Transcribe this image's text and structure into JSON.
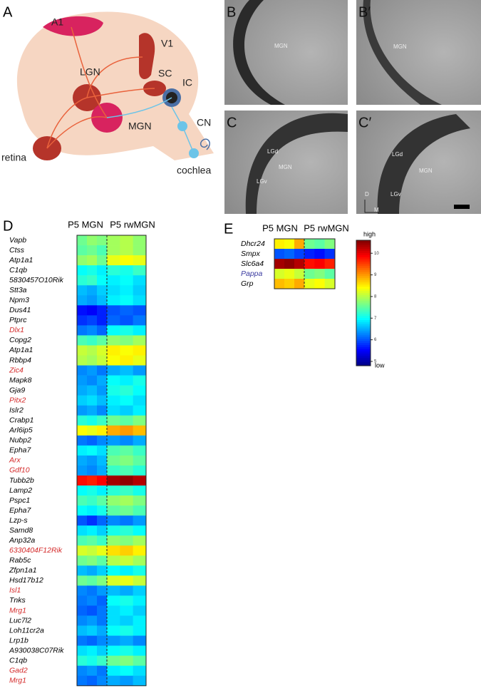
{
  "panel_a": {
    "letter": "A",
    "labels": [
      "A1",
      "V1",
      "SC",
      "IC",
      "LGN",
      "MGN",
      "CN",
      "retina",
      "cochlea"
    ]
  },
  "photos": [
    {
      "letter": "B",
      "labels": [
        "MGN"
      ]
    },
    {
      "letter": "B′",
      "labels": [
        "MGN"
      ]
    },
    {
      "letter": "C",
      "labels": [
        "LGd",
        "MGN",
        "LGv"
      ]
    },
    {
      "letter": "C′",
      "labels": [
        "LGd",
        "MGN",
        "LGv",
        "D",
        "M"
      ]
    }
  ],
  "panel_d": {
    "letter": "D",
    "columns": [
      "P5 MGN",
      "P5 rwMGN"
    ],
    "rows": [
      {
        "gene": "Vapb",
        "values": [
          7.6,
          7.8,
          7.7,
          7.9,
          8.0,
          7.8
        ]
      },
      {
        "gene": "Ctss",
        "values": [
          7.5,
          7.6,
          7.4,
          7.9,
          8.0,
          7.8
        ]
      },
      {
        "gene": "Atp1a1",
        "values": [
          7.8,
          7.9,
          7.6,
          8.3,
          8.4,
          8.3
        ]
      },
      {
        "gene": "C1qb",
        "values": [
          7.0,
          7.1,
          6.9,
          7.2,
          7.1,
          7.3
        ]
      },
      {
        "gene": "5830457O10Rik",
        "values": [
          7.2,
          7.3,
          7.0,
          6.9,
          7.0,
          6.8
        ]
      },
      {
        "gene": "Stt3a",
        "values": [
          6.6,
          6.5,
          6.7,
          6.8,
          6.9,
          6.7
        ]
      },
      {
        "gene": "Npm3",
        "values": [
          6.5,
          6.4,
          6.6,
          6.9,
          7.0,
          6.8
        ]
      },
      {
        "gene": "Dus41",
        "values": [
          5.6,
          5.5,
          5.7,
          6.0,
          6.1,
          6.0
        ]
      },
      {
        "gene": "Ptprc",
        "values": [
          5.8,
          5.9,
          5.7,
          6.1,
          6.0,
          6.2
        ]
      },
      {
        "gene": "Dlx1",
        "label_color": "#d42a2a",
        "values": [
          6.2,
          6.3,
          6.1,
          7.0,
          7.1,
          6.9
        ]
      },
      {
        "gene": "Copg2",
        "values": [
          7.4,
          7.3,
          7.5,
          7.8,
          7.7,
          7.9
        ]
      },
      {
        "gene": "Atp1a1",
        "values": [
          8.1,
          8.0,
          8.2,
          8.5,
          8.4,
          8.5
        ]
      },
      {
        "gene": "Rbbp4",
        "values": [
          8.0,
          7.9,
          8.1,
          8.4,
          8.5,
          8.3
        ]
      },
      {
        "gene": "Zic4",
        "label_color": "#d42a2a",
        "values": [
          6.3,
          6.4,
          6.2,
          6.5,
          6.6,
          6.4
        ]
      },
      {
        "gene": "Mapk8",
        "values": [
          6.4,
          6.3,
          6.5,
          7.0,
          6.9,
          7.1
        ]
      },
      {
        "gene": "Gja9",
        "values": [
          6.5,
          6.6,
          6.4,
          7.1,
          7.2,
          7.0
        ]
      },
      {
        "gene": "Pitx2",
        "label_color": "#d42a2a",
        "values": [
          6.7,
          6.8,
          6.6,
          6.9,
          7.0,
          6.8
        ]
      },
      {
        "gene": "Islr2",
        "values": [
          6.4,
          6.5,
          6.3,
          6.8,
          6.7,
          6.9
        ]
      },
      {
        "gene": "Crabp1",
        "values": [
          7.2,
          7.1,
          7.3,
          7.6,
          7.5,
          7.7
        ]
      },
      {
        "gene": "Arl6ip5",
        "values": [
          8.4,
          8.3,
          8.5,
          8.9,
          9.0,
          8.8
        ]
      },
      {
        "gene": "Nubp2",
        "values": [
          6.2,
          6.1,
          6.3,
          6.4,
          6.3,
          6.5
        ]
      },
      {
        "gene": "Epha7",
        "values": [
          6.9,
          7.0,
          6.8,
          7.4,
          7.5,
          7.3
        ]
      },
      {
        "gene": "Arx",
        "label_color": "#d42a2a",
        "values": [
          6.5,
          6.4,
          6.6,
          7.6,
          7.7,
          7.5
        ]
      },
      {
        "gene": "Gdf10",
        "label_color": "#d42a2a",
        "values": [
          6.4,
          6.3,
          6.5,
          7.3,
          7.4,
          7.2
        ]
      },
      {
        "gene": "Tubb2b",
        "values": [
          9.8,
          9.7,
          9.9,
          10.4,
          10.5,
          10.3
        ]
      },
      {
        "gene": "Lamp2",
        "values": [
          7.0,
          7.1,
          6.9,
          7.2,
          7.3,
          7.1
        ]
      },
      {
        "gene": "Pspc1",
        "values": [
          7.4,
          7.3,
          7.5,
          7.8,
          7.9,
          7.7
        ]
      },
      {
        "gene": "Epha7",
        "values": [
          7.0,
          6.9,
          7.1,
          7.5,
          7.6,
          7.4
        ]
      },
      {
        "gene": "Lzp-s",
        "values": [
          6.0,
          5.8,
          6.1,
          6.3,
          6.2,
          6.4
        ]
      },
      {
        "gene": "Samd8",
        "values": [
          6.8,
          6.9,
          6.7,
          7.1,
          7.2,
          7.0
        ]
      },
      {
        "gene": "Anp32a",
        "values": [
          7.4,
          7.5,
          7.3,
          7.8,
          7.7,
          7.9
        ]
      },
      {
        "gene": "6330404F12Rik",
        "label_color": "#d42a2a",
        "values": [
          8.2,
          8.1,
          8.3,
          8.6,
          8.7,
          8.5
        ]
      },
      {
        "gene": "Rab5c",
        "values": [
          7.6,
          7.7,
          7.5,
          8.0,
          8.1,
          7.9
        ]
      },
      {
        "gene": "Zfpn1a1",
        "values": [
          6.6,
          6.5,
          6.7,
          7.0,
          6.9,
          7.1
        ]
      },
      {
        "gene": "Hsd17b12",
        "values": [
          7.6,
          7.5,
          7.7,
          8.2,
          8.3,
          8.1
        ]
      },
      {
        "gene": "Isl1",
        "label_color": "#d42a2a",
        "values": [
          6.3,
          6.2,
          6.4,
          6.6,
          6.5,
          6.7
        ]
      },
      {
        "gene": "Tnks",
        "values": [
          6.2,
          6.3,
          6.1,
          7.0,
          7.1,
          6.9
        ]
      },
      {
        "gene": "Mrg1",
        "label_color": "#d42a2a",
        "values": [
          6.1,
          6.0,
          6.2,
          6.8,
          6.9,
          6.7
        ]
      },
      {
        "gene": "Luc7l2",
        "values": [
          6.3,
          6.4,
          6.2,
          6.8,
          6.7,
          6.9
        ]
      },
      {
        "gene": "Loh11cr2a",
        "values": [
          6.6,
          6.7,
          6.5,
          7.0,
          7.1,
          6.9
        ]
      },
      {
        "gene": "Lrp1b",
        "values": [
          6.2,
          6.1,
          6.3,
          6.4,
          6.5,
          6.3
        ]
      },
      {
        "gene": "A930038C07Rik",
        "values": [
          6.8,
          6.9,
          6.7,
          7.0,
          7.1,
          6.9
        ]
      },
      {
        "gene": "C1qb",
        "values": [
          7.2,
          7.1,
          7.3,
          7.6,
          7.7,
          7.5
        ]
      },
      {
        "gene": "Gad2",
        "label_color": "#d42a2a",
        "values": [
          6.3,
          6.4,
          6.2,
          6.9,
          7.0,
          6.8
        ]
      },
      {
        "gene": "Mrg1",
        "label_color": "#d42a2a",
        "values": [
          6.2,
          6.1,
          6.3,
          6.5,
          6.4,
          6.6
        ]
      }
    ]
  },
  "panel_e": {
    "letter": "E",
    "columns": [
      "P5 MGN",
      "P5 rwMGN"
    ],
    "rows": [
      {
        "gene": "Dhcr24",
        "values": [
          8.5,
          8.4,
          8.9,
          7.6,
          7.5,
          7.7
        ]
      },
      {
        "gene": "Smpx",
        "values": [
          6.0,
          6.1,
          5.9,
          5.7,
          5.6,
          5.8
        ]
      },
      {
        "gene": "Slc6a4",
        "values": [
          10.4,
          10.5,
          10.3,
          9.8,
          9.9,
          9.7
        ]
      },
      {
        "gene": "Pappa",
        "label_color": "#3a3aa0",
        "values": [
          8.2,
          8.3,
          8.1,
          7.6,
          7.7,
          7.5
        ]
      },
      {
        "gene": "Grp",
        "values": [
          8.8,
          8.7,
          8.9,
          8.3,
          8.4,
          8.2
        ]
      }
    ]
  },
  "colorbar": {
    "lim": [
      4.8,
      10.6
    ],
    "ticks": [
      5,
      6,
      7,
      8,
      9,
      10
    ],
    "high": "high",
    "low": "low"
  }
}
